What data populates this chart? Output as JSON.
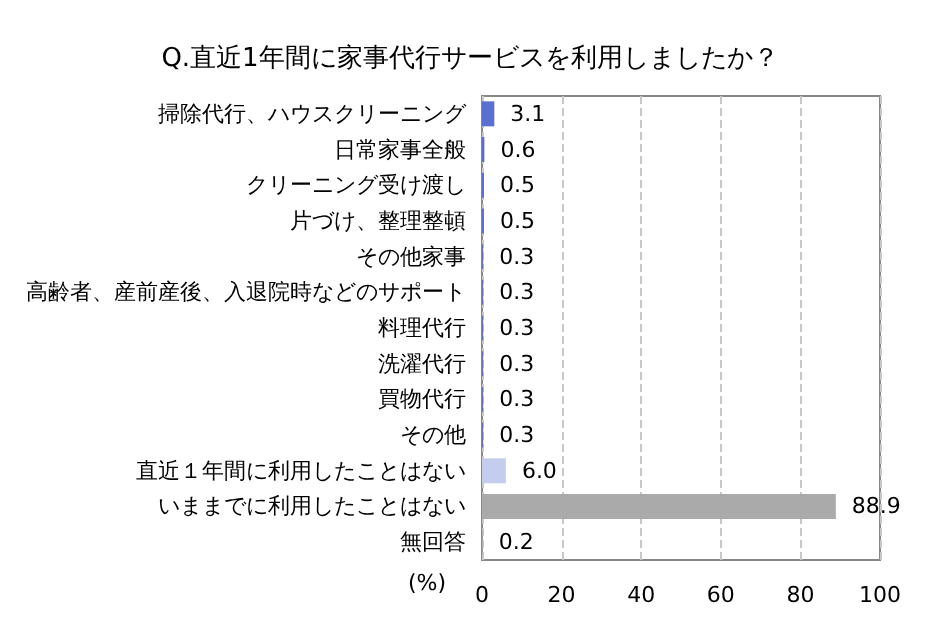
{
  "chart_data": {
    "type": "bar",
    "orientation": "horizontal",
    "title": "Q.直近1年間に家事代行サービスを利用しましたか？",
    "xlabel": "(%)",
    "categories": [
      "掃除代行、ハウスクリーニング",
      "日常家事全般",
      "クリーニング受け渡し",
      "片づけ、整理整頓",
      "その他家事",
      "高齢者、産前産後、入退院時などのサポート",
      "料理代行",
      "洗濯代行",
      "買物代行",
      "その他",
      "直近１年間に利用したことはない",
      "いままでに利用したことはない",
      "無回答"
    ],
    "values": [
      3.1,
      0.6,
      0.5,
      0.5,
      0.3,
      0.3,
      0.3,
      0.3,
      0.3,
      0.3,
      6.0,
      88.9,
      0.2
    ],
    "colors": [
      "#5a6fd0",
      "#5a6fd0",
      "#5a6fd0",
      "#5a6fd0",
      "#5a6fd0",
      "#5a6fd0",
      "#5a6fd0",
      "#5a6fd0",
      "#5a6fd0",
      "#5a6fd0",
      "#c5cdee",
      "#aaaaaa",
      "#aaaaaa"
    ],
    "value_labels": [
      "3.1",
      "0.6",
      "0.5",
      "0.5",
      "0.3",
      "0.3",
      "0.3",
      "0.3",
      "0.3",
      "0.3",
      "6.0",
      "88.9",
      "0.2"
    ],
    "xlim": [
      0,
      100
    ],
    "xticks": [
      0,
      20,
      40,
      60,
      80,
      100
    ],
    "grid": "x"
  }
}
